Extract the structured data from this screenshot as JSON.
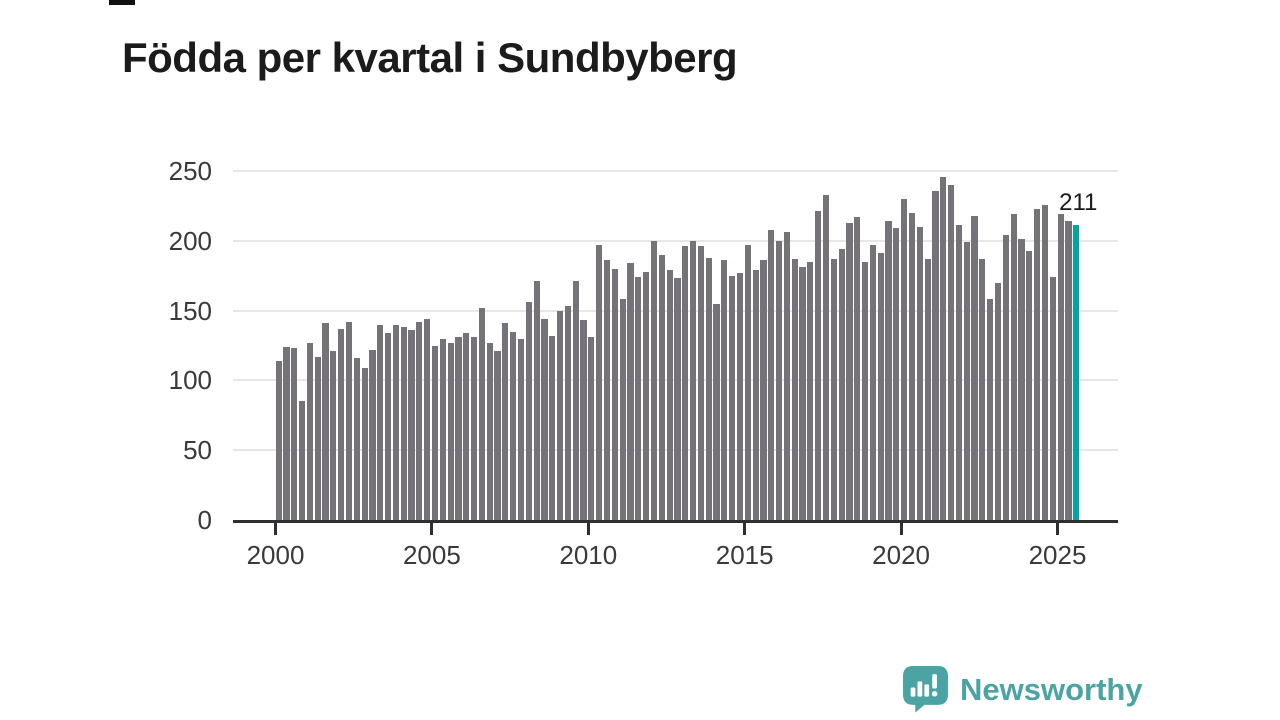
{
  "title": "Födda per kvartal i Sundbyberg",
  "branding": {
    "name": "Newsworthy",
    "icon": "newsworthy-speech-bubble-chart-icon",
    "color": "#4BA4A3"
  },
  "colors": {
    "bar": "#757379",
    "highlight": "#00A69B",
    "grid": "#e7e7e7",
    "axis": "#2f2f2f",
    "tick_text": "#3a3a3a",
    "title_text": "#1b1b1b"
  },
  "chart_data": {
    "type": "bar",
    "title": "Födda per kvartal i Sundbyberg",
    "xlabel": "",
    "ylabel": "",
    "frequency": "quarterly",
    "x_start": "2000 Q1",
    "x_end": "2025 Q3",
    "x_tick_labels": [
      "2000",
      "2005",
      "2010",
      "2015",
      "2020",
      "2025"
    ],
    "y_ticks": [
      0,
      50,
      100,
      150,
      200,
      250
    ],
    "ylim": [
      0,
      250
    ],
    "grid": "horizontal",
    "legend": "none",
    "highlight_last_bar": true,
    "last_value_label": "211",
    "series": [
      {
        "name": "Födda per kvartal",
        "values": [
          114,
          124,
          123,
          85,
          127,
          117,
          141,
          121,
          137,
          142,
          116,
          109,
          122,
          140,
          134,
          140,
          138,
          136,
          142,
          144,
          125,
          130,
          127,
          131,
          134,
          131,
          152,
          127,
          121,
          141,
          135,
          130,
          156,
          171,
          144,
          132,
          150,
          153,
          171,
          143,
          131,
          197,
          186,
          180,
          158,
          184,
          174,
          178,
          200,
          190,
          179,
          173,
          196,
          200,
          196,
          188,
          155,
          186,
          175,
          177,
          197,
          179,
          186,
          208,
          200,
          206,
          187,
          181,
          185,
          221,
          233,
          187,
          194,
          213,
          217,
          185,
          197,
          191,
          214,
          209,
          230,
          220,
          210,
          187,
          236,
          246,
          240,
          211,
          199,
          218,
          187,
          158,
          170,
          204,
          219,
          201,
          193,
          223,
          226,
          174,
          219,
          214,
          211
        ]
      }
    ]
  }
}
